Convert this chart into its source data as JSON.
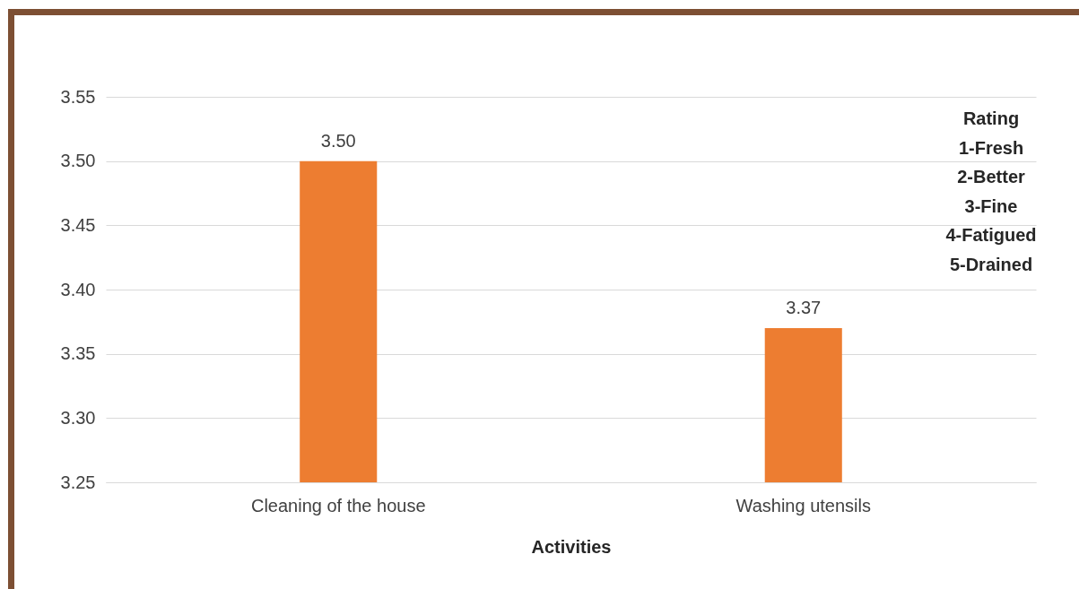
{
  "chart_data": {
    "type": "bar",
    "xlabel": "Activities",
    "categories": [
      "Cleaning of the house",
      "Washing utensils"
    ],
    "values": [
      3.5,
      3.37
    ],
    "value_labels": [
      "3.50",
      "3.37"
    ],
    "color": "#ed7d31",
    "ylim": [
      3.25,
      3.55
    ],
    "yticks": [
      {
        "value": 3.25,
        "label": "3.25"
      },
      {
        "value": 3.3,
        "label": "3.30"
      },
      {
        "value": 3.35,
        "label": "3.35"
      },
      {
        "value": 3.4,
        "label": "3.40"
      },
      {
        "value": 3.45,
        "label": "3.45"
      },
      {
        "value": 3.5,
        "label": "3.50"
      },
      {
        "value": 3.55,
        "label": "3.55"
      }
    ],
    "grid": "y",
    "annotations": [
      "Rating",
      "1-Fresh",
      "2-Better",
      "3-Fine",
      "4-Fatigued",
      "5-Drained"
    ]
  }
}
